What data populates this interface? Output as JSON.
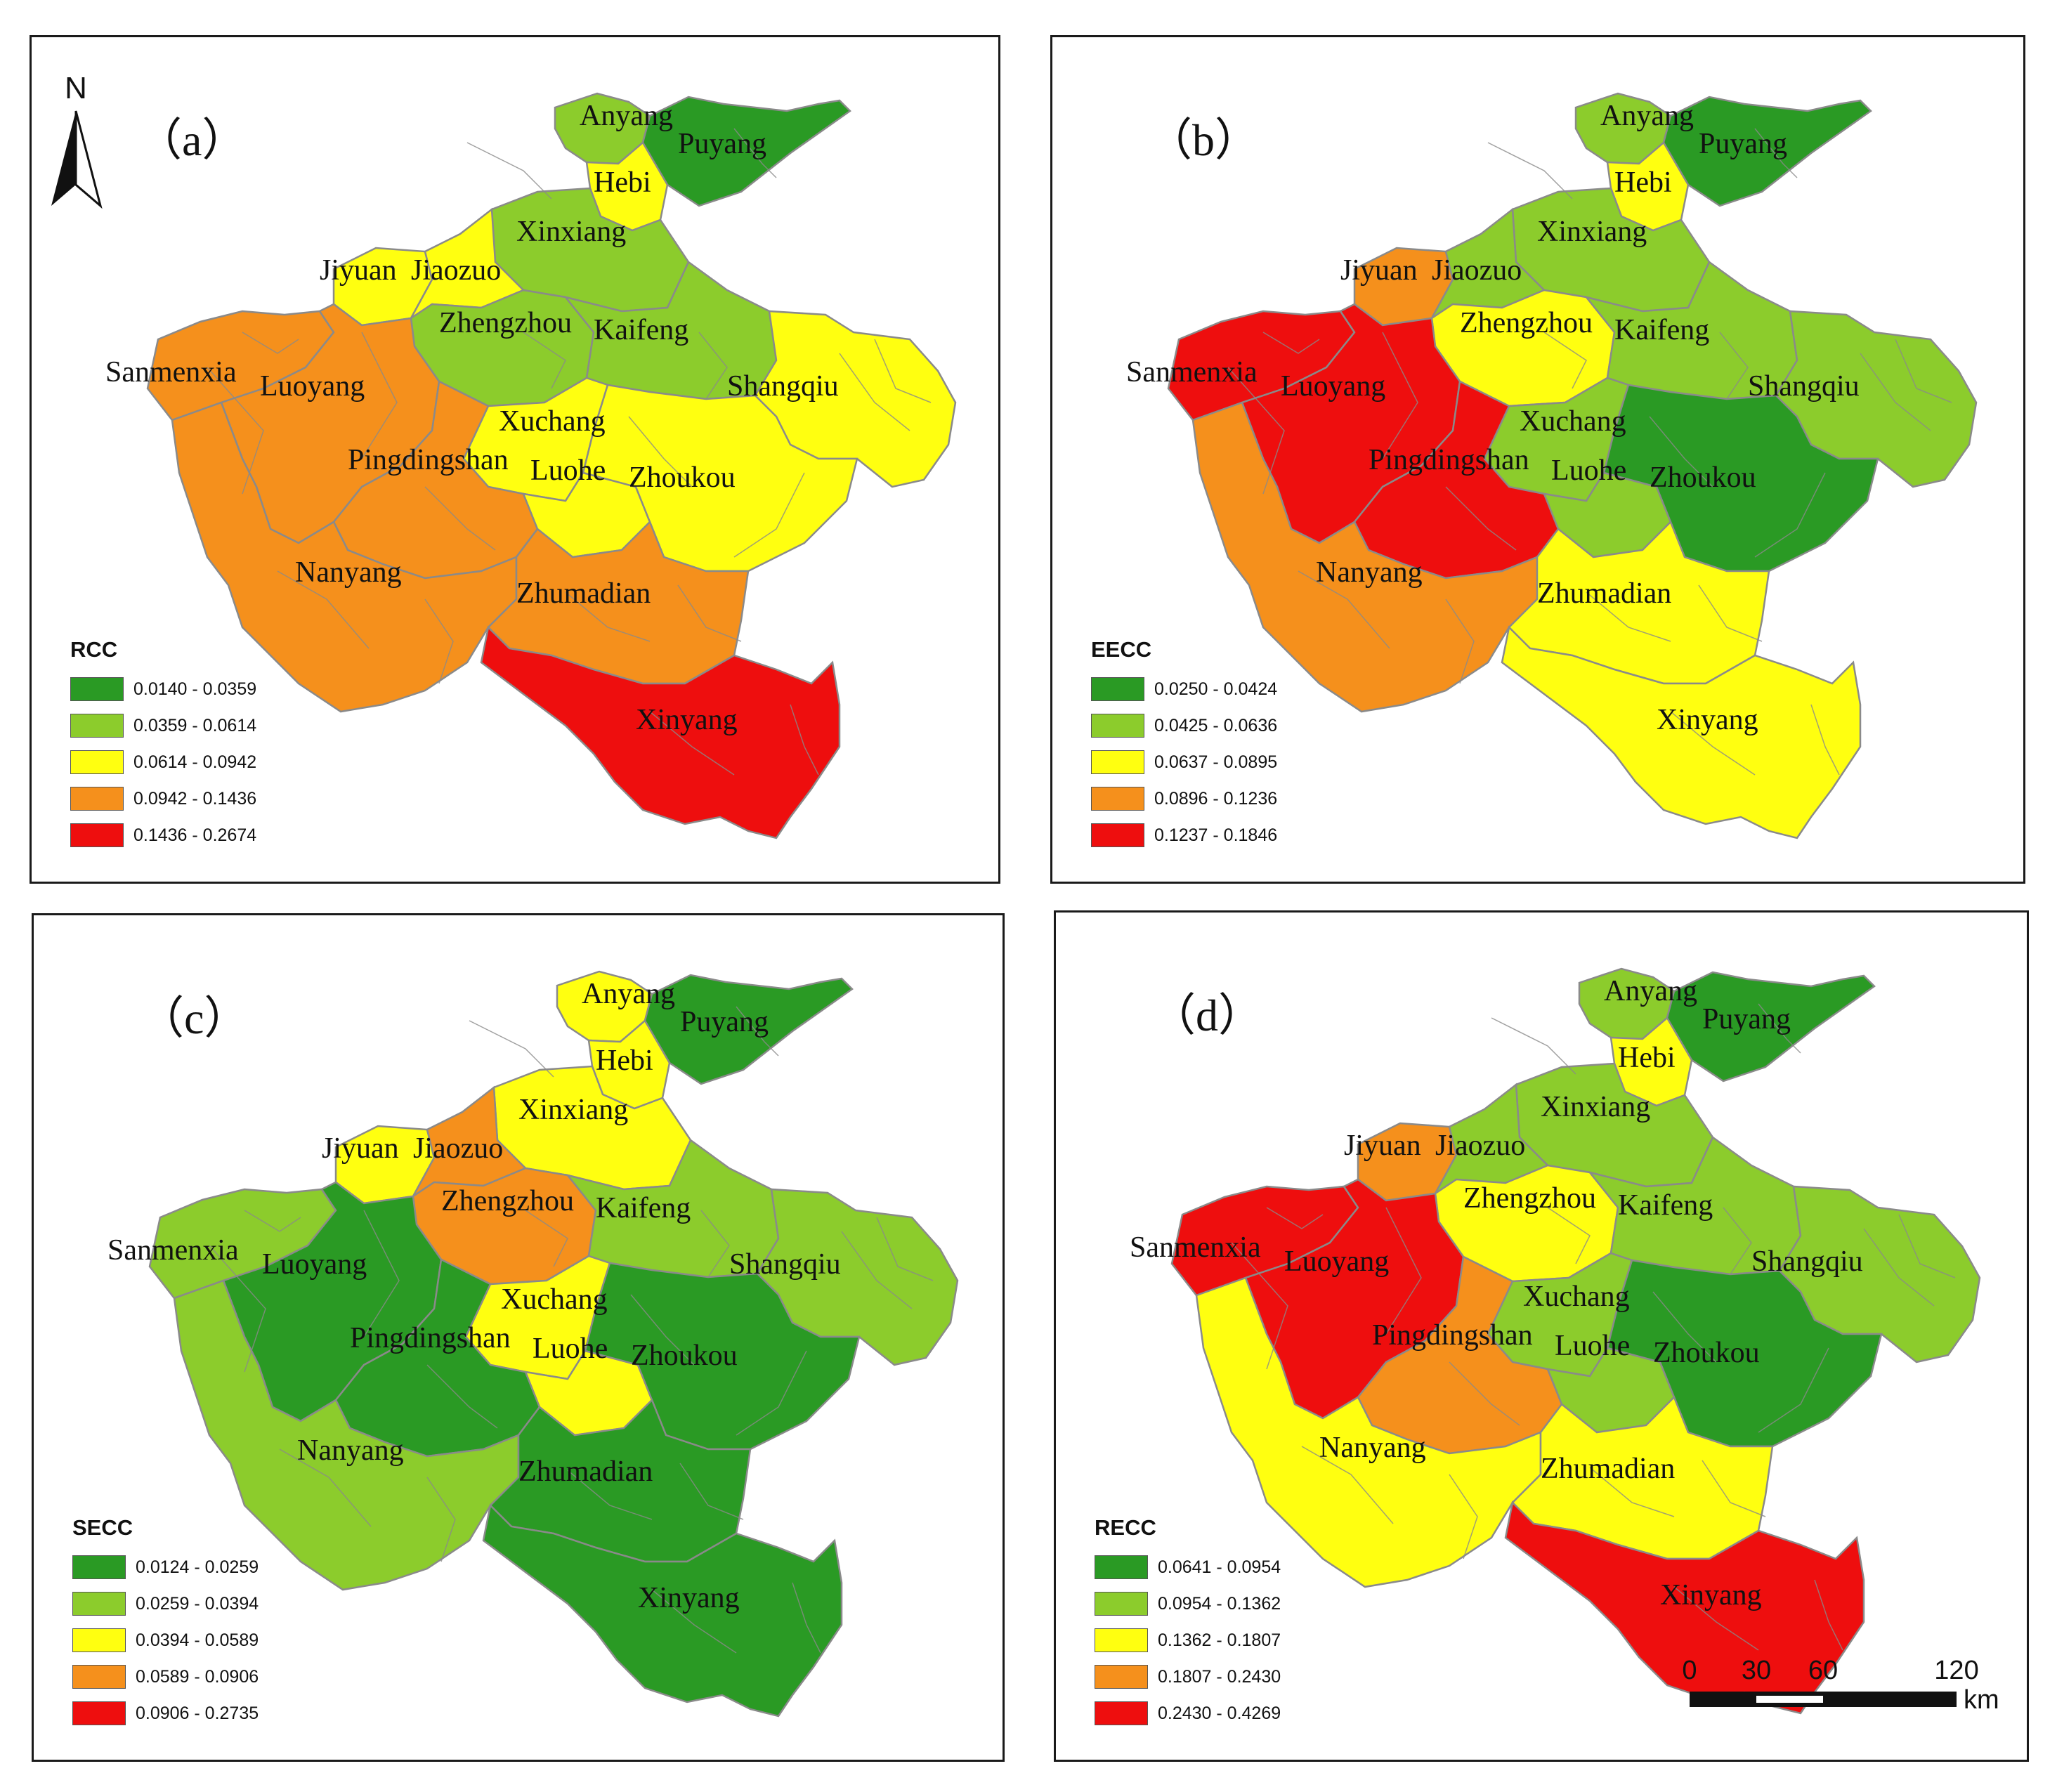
{
  "colors": {
    "class1": "#2a9a24",
    "class2": "#8ccc2c",
    "class3": "#ffff10",
    "class4": "#f5901c",
    "class5": "#ee0e0e",
    "boundary": "#8a8a8a"
  },
  "north_arrow": {
    "letter": "N",
    "icon": "north-arrow-icon"
  },
  "scale_bar": {
    "ticks": [
      "0",
      "30",
      "60",
      "120"
    ],
    "unit": "km"
  },
  "cities": [
    "Anyang",
    "Puyang",
    "Hebi",
    "Xinxiang",
    "Jiyuan",
    "Jiaozuo",
    "Zhengzhou",
    "Kaifeng",
    "Sanmenxia",
    "Luoyang",
    "Shangqiu",
    "Xuchang",
    "Pingdingshan",
    "Luohe",
    "Zhoukou",
    "Nanyang",
    "Zhumadian",
    "Xinyang"
  ],
  "panels": [
    {
      "id": "a",
      "label": "（a）",
      "legend_title": "RCC",
      "classes": [
        "0.0140 - 0.0359",
        "0.0359 - 0.0614",
        "0.0614 - 0.0942",
        "0.0942 - 0.1436",
        "0.1436 - 0.2674"
      ],
      "region_classes": {
        "Anyang": 2,
        "Puyang": 1,
        "Hebi": 3,
        "Xinxiang": 2,
        "Jiyuan": 3,
        "Jiaozuo": 3,
        "Zhengzhou": 2,
        "Kaifeng": 2,
        "Sanmenxia": 4,
        "Luoyang": 4,
        "Shangqiu": 3,
        "Xuchang": 3,
        "Pingdingshan": 4,
        "Luohe": 3,
        "Zhoukou": 3,
        "Nanyang": 4,
        "Zhumadian": 4,
        "Xinyang": 5
      }
    },
    {
      "id": "b",
      "label": "（b）",
      "legend_title": "EECC",
      "classes": [
        "0.0250 - 0.0424",
        "0.0425 - 0.0636",
        "0.0637 - 0.0895",
        "0.0896 - 0.1236",
        "0.1237 - 0.1846"
      ],
      "region_classes": {
        "Anyang": 2,
        "Puyang": 1,
        "Hebi": 3,
        "Xinxiang": 2,
        "Jiyuan": 4,
        "Jiaozuo": 2,
        "Zhengzhou": 3,
        "Kaifeng": 2,
        "Sanmenxia": 5,
        "Luoyang": 5,
        "Shangqiu": 2,
        "Xuchang": 2,
        "Pingdingshan": 5,
        "Luohe": 2,
        "Zhoukou": 1,
        "Nanyang": 4,
        "Zhumadian": 3,
        "Xinyang": 3
      }
    },
    {
      "id": "c",
      "label": "（c）",
      "legend_title": "SECC",
      "classes": [
        "0.0124 - 0.0259",
        "0.0259 - 0.0394",
        "0.0394 - 0.0589",
        "0.0589 - 0.0906",
        "0.0906 - 0.2735"
      ],
      "region_classes": {
        "Anyang": 3,
        "Puyang": 1,
        "Hebi": 3,
        "Xinxiang": 3,
        "Jiyuan": 3,
        "Jiaozuo": 4,
        "Zhengzhou": 4,
        "Kaifeng": 2,
        "Sanmenxia": 2,
        "Luoyang": 1,
        "Shangqiu": 2,
        "Xuchang": 3,
        "Pingdingshan": 1,
        "Luohe": 3,
        "Zhoukou": 1,
        "Nanyang": 2,
        "Zhumadian": 1,
        "Xinyang": 1
      }
    },
    {
      "id": "d",
      "label": "（d）",
      "legend_title": "RECC",
      "classes": [
        "0.0641 - 0.0954",
        "0.0954 - 0.1362",
        "0.1362 - 0.1807",
        "0.1807 - 0.2430",
        "0.2430 - 0.4269"
      ],
      "region_classes": {
        "Anyang": 2,
        "Puyang": 1,
        "Hebi": 3,
        "Xinxiang": 2,
        "Jiyuan": 4,
        "Jiaozuo": 2,
        "Zhengzhou": 3,
        "Kaifeng": 2,
        "Sanmenxia": 5,
        "Luoyang": 5,
        "Shangqiu": 2,
        "Xuchang": 2,
        "Pingdingshan": 4,
        "Luohe": 2,
        "Zhoukou": 1,
        "Nanyang": 3,
        "Zhumadian": 3,
        "Xinyang": 5
      }
    }
  ]
}
